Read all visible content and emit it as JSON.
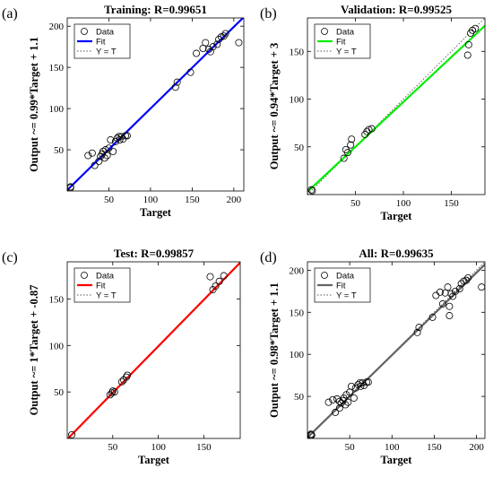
{
  "chart_data": [
    {
      "type": "scatter",
      "panel_label": "(a)",
      "title": "Training: R=0.99651",
      "xlabel": "Target",
      "ylabel": "Output ~= 0.99*Target + 1.1",
      "xlim": [
        0,
        212
      ],
      "ylim": [
        0,
        210
      ],
      "xticks": [
        50,
        100,
        150,
        200
      ],
      "yticks": [
        50,
        100,
        150,
        200
      ],
      "fit_color": "#0000ff",
      "fit": {
        "slope": 0.99,
        "intercept": 1.1
      },
      "legend": [
        "Data",
        "Fit",
        "Y = T"
      ],
      "legend_position": "top-left",
      "points": [
        [
          4,
          4
        ],
        [
          4,
          5
        ],
        [
          25,
          43
        ],
        [
          30,
          46
        ],
        [
          33,
          31
        ],
        [
          38,
          36
        ],
        [
          40,
          42
        ],
        [
          42,
          45
        ],
        [
          43,
          48
        ],
        [
          45,
          40
        ],
        [
          46,
          50
        ],
        [
          48,
          43
        ],
        [
          50,
          52
        ],
        [
          52,
          62
        ],
        [
          55,
          48
        ],
        [
          58,
          60
        ],
        [
          60,
          64
        ],
        [
          62,
          66
        ],
        [
          63,
          62
        ],
        [
          65,
          66
        ],
        [
          67,
          63
        ],
        [
          70,
          67
        ],
        [
          72,
          67
        ],
        [
          130,
          126
        ],
        [
          132,
          132
        ],
        [
          148,
          144
        ],
        [
          155,
          167
        ],
        [
          163,
          173
        ],
        [
          166,
          180
        ],
        [
          170,
          172
        ],
        [
          172,
          169
        ],
        [
          175,
          175
        ],
        [
          180,
          178
        ],
        [
          182,
          184
        ],
        [
          185,
          187
        ],
        [
          188,
          188
        ],
        [
          190,
          191
        ],
        [
          206,
          180
        ]
      ]
    },
    {
      "type": "scatter",
      "panel_label": "(b)",
      "title": "Validation: R=0.99525",
      "xlabel": "Target",
      "ylabel": "Output ~= 0.94*Target + 3",
      "xlim": [
        0,
        185
      ],
      "ylim": [
        0,
        185
      ],
      "xticks": [
        50,
        100,
        150
      ],
      "yticks": [
        50,
        100,
        150
      ],
      "fit_color": "#00ee00",
      "fit": {
        "slope": 0.94,
        "intercept": 3
      },
      "legend": [
        "Data",
        "Fit",
        "Y = T"
      ],
      "legend_position": "top-left",
      "points": [
        [
          4,
          5
        ],
        [
          5,
          4
        ],
        [
          38,
          38
        ],
        [
          40,
          47
        ],
        [
          42,
          44
        ],
        [
          45,
          52
        ],
        [
          46,
          58
        ],
        [
          60,
          63
        ],
        [
          62,
          66
        ],
        [
          64,
          68
        ],
        [
          67,
          69
        ],
        [
          167,
          146
        ],
        [
          168,
          157
        ],
        [
          170,
          169
        ],
        [
          172,
          172
        ],
        [
          175,
          174
        ]
      ]
    },
    {
      "type": "scatter",
      "panel_label": "(c)",
      "title": "Test: R=0.99857",
      "xlabel": "Target",
      "ylabel": "Output ~= 1*Target + -0.87",
      "xlim": [
        0,
        190
      ],
      "ylim": [
        0,
        190
      ],
      "xticks": [
        50,
        100,
        150
      ],
      "yticks": [
        50,
        100,
        150
      ],
      "fit_color": "#ff0000",
      "fit": {
        "slope": 1.0,
        "intercept": -0.87
      },
      "legend": [
        "Data",
        "Fit",
        "Y = T"
      ],
      "legend_position": "top-left",
      "points": [
        [
          5,
          4
        ],
        [
          47,
          47
        ],
        [
          49,
          49
        ],
        [
          50,
          51
        ],
        [
          52,
          50
        ],
        [
          60,
          61
        ],
        [
          62,
          63
        ],
        [
          65,
          66
        ],
        [
          66,
          68
        ],
        [
          157,
          174
        ],
        [
          160,
          160
        ],
        [
          163,
          164
        ],
        [
          167,
          169
        ],
        [
          172,
          175
        ]
      ]
    },
    {
      "type": "scatter",
      "panel_label": "(d)",
      "title": "All: R=0.99635",
      "xlabel": "Target",
      "ylabel": "Output ~= 0.98*Target + 1.1",
      "xlim": [
        0,
        210
      ],
      "ylim": [
        0,
        210
      ],
      "xticks": [
        50,
        100,
        150,
        200
      ],
      "yticks": [
        50,
        100,
        150,
        200
      ],
      "fit_color": "#646464",
      "fit": {
        "slope": 0.98,
        "intercept": 1.1
      },
      "legend": [
        "Data",
        "Fit",
        "Y = T"
      ],
      "legend_position": "top-left",
      "points": [
        [
          4,
          4
        ],
        [
          4,
          5
        ],
        [
          5,
          4
        ],
        [
          25,
          43
        ],
        [
          30,
          46
        ],
        [
          33,
          31
        ],
        [
          35,
          47
        ],
        [
          38,
          36
        ],
        [
          38,
          44
        ],
        [
          40,
          42
        ],
        [
          42,
          45
        ],
        [
          43,
          48
        ],
        [
          45,
          40
        ],
        [
          46,
          52
        ],
        [
          48,
          43
        ],
        [
          50,
          55
        ],
        [
          52,
          62
        ],
        [
          55,
          48
        ],
        [
          57,
          60
        ],
        [
          60,
          64
        ],
        [
          62,
          66
        ],
        [
          63,
          62
        ],
        [
          65,
          66
        ],
        [
          67,
          63
        ],
        [
          70,
          67
        ],
        [
          72,
          67
        ],
        [
          130,
          126
        ],
        [
          132,
          132
        ],
        [
          148,
          144
        ],
        [
          152,
          170
        ],
        [
          157,
          174
        ],
        [
          160,
          160
        ],
        [
          163,
          173
        ],
        [
          166,
          180
        ],
        [
          168,
          157
        ],
        [
          168,
          146
        ],
        [
          170,
          172
        ],
        [
          172,
          169
        ],
        [
          175,
          175
        ],
        [
          180,
          178
        ],
        [
          182,
          184
        ],
        [
          185,
          187
        ],
        [
          188,
          188
        ],
        [
          190,
          191
        ],
        [
          206,
          180
        ]
      ]
    }
  ]
}
